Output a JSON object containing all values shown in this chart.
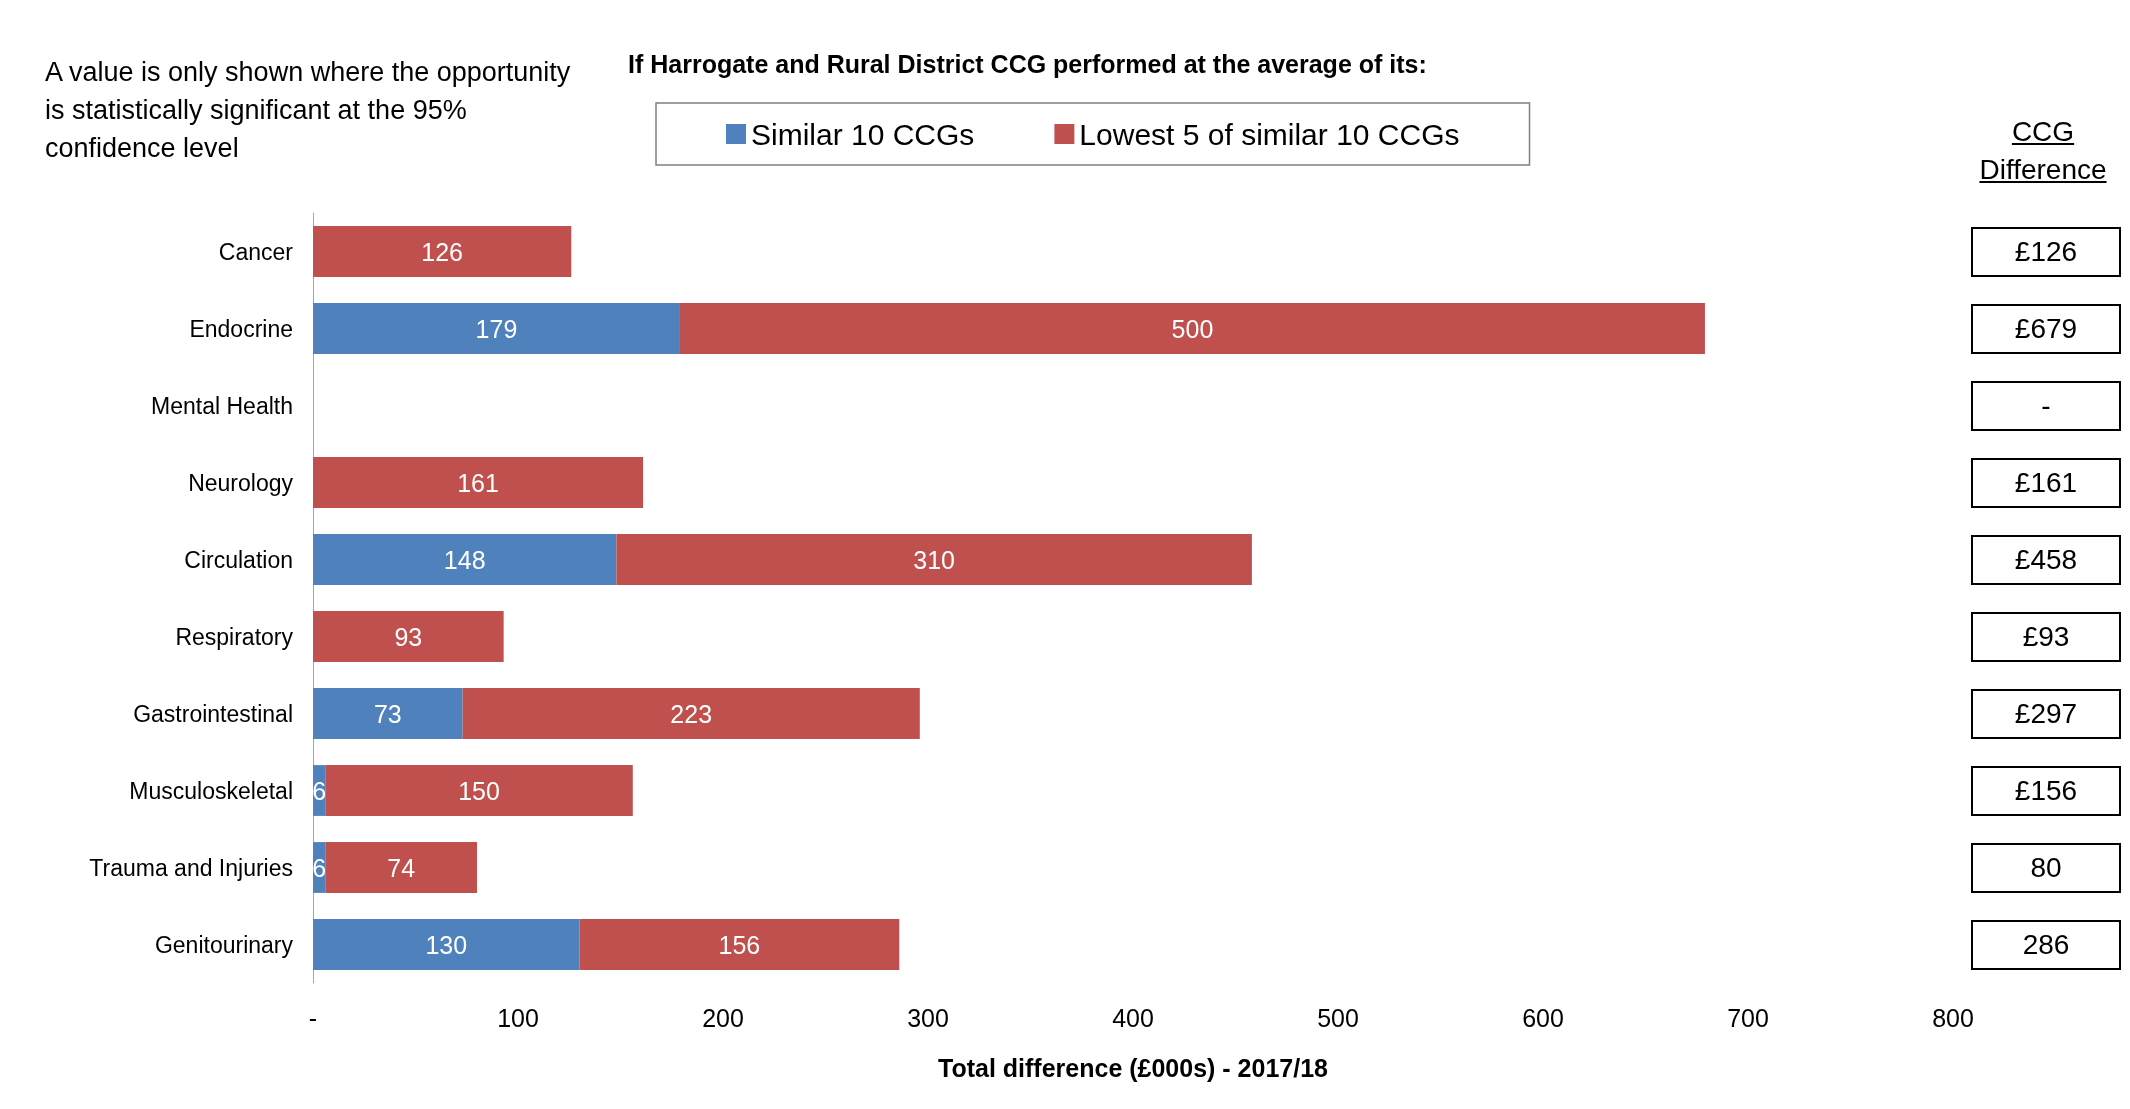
{
  "chart_data": {
    "type": "bar",
    "orientation": "horizontal",
    "stacked": true,
    "title": "If Harrogate and Rural District CCG performed at the average of its:",
    "categories": [
      "Cancer",
      "Endocrine",
      "Mental Health",
      "Neurology",
      "Circulation",
      "Respiratory",
      "Gastrointestinal",
      "Musculoskeletal",
      "Trauma and Injuries",
      "Genitourinary"
    ],
    "series": [
      {
        "name": "Similar 10 CCGs",
        "color": "#4f81bd",
        "values": [
          null,
          179,
          null,
          null,
          148,
          null,
          73,
          6,
          6,
          130
        ]
      },
      {
        "name": "Lowest 5 of similar 10 CCGs",
        "color": "#c0504d",
        "values": [
          126,
          500,
          null,
          161,
          310,
          93,
          223,
          150,
          74,
          156
        ]
      }
    ],
    "xlabel": "Total difference (£000s) - 2017/18",
    "xlim": [
      0,
      800
    ],
    "xticks": [
      {
        "value": 0,
        "label": "-"
      },
      100,
      200,
      300,
      400,
      500,
      600,
      700,
      800
    ],
    "data_labels": true,
    "legend": "top",
    "grid": false,
    "annotations": [
      "A value is only shown where the opportunity is statistically significant at the 95% confidence level",
      "CCG Difference",
      "£126",
      "£679",
      "-",
      "£161",
      "£458",
      "£93",
      "£297",
      "£156",
      "80",
      "286"
    ]
  }
}
